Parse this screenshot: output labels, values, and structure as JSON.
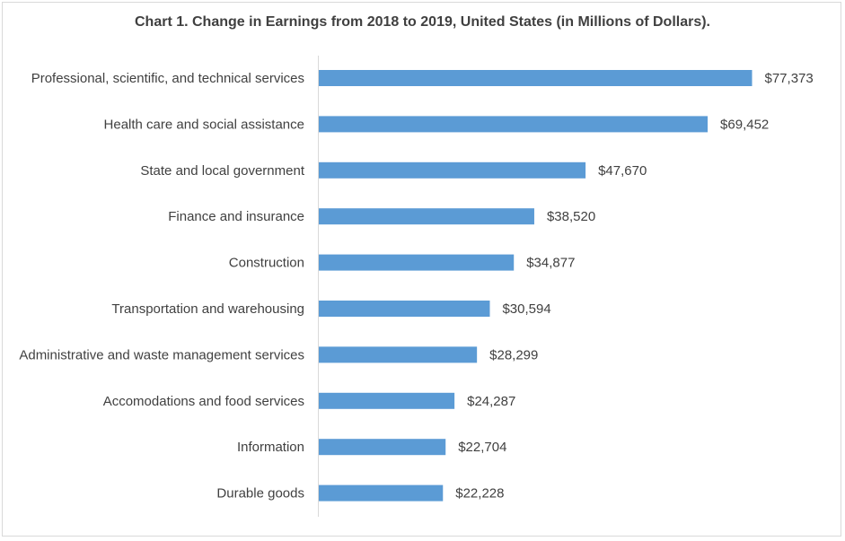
{
  "chart_data": {
    "type": "bar",
    "orientation": "horizontal",
    "title": "Chart 1. Change in Earnings from 2018 to 2019, United States (in Millions of Dollars).",
    "categories": [
      "Professional, scientific, and technical services",
      "Health care and social assistance",
      "State and local government",
      "Finance and insurance",
      "Construction",
      "Transportation and warehousing",
      "Administrative and waste management services",
      "Accomodations and food services",
      "Information",
      "Durable goods"
    ],
    "values": [
      77373,
      69452,
      47670,
      38520,
      34877,
      30594,
      28299,
      24287,
      22704,
      22228
    ],
    "value_labels": [
      "$77,373",
      "$69,452",
      "$47,670",
      "$38,520",
      "$34,877",
      "$30,594",
      "$28,299",
      "$24,287",
      "$22,704",
      "$22,228"
    ],
    "xlabel": "",
    "ylabel": "",
    "xlim": [
      0,
      80000
    ],
    "grid": false,
    "bar_color": "#5b9bd5"
  }
}
